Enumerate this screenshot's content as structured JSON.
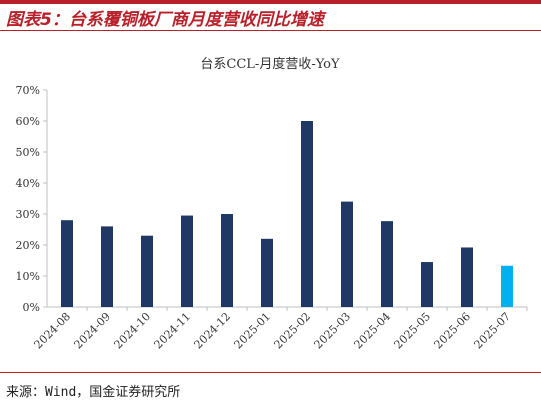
{
  "figure_title": "图表5：台系覆铜板厂商月度营收同比增速",
  "source_note": "来源：Wind，国金证券研究所",
  "colors": {
    "brand": "#b8202a",
    "bar": "#1f3864",
    "bar_highlight": "#00b0f0",
    "axis": "#bfbfbf"
  },
  "chart_data": {
    "type": "bar",
    "title": "台系CCL-月度营收-YoY",
    "xlabel": "",
    "ylabel": "",
    "categories": [
      "2024-08",
      "2024-09",
      "2024-10",
      "2024-11",
      "2024-12",
      "2025-01",
      "2025-02",
      "2025-03",
      "2025-04",
      "2025-05",
      "2025-06",
      "2025-07"
    ],
    "values": [
      28,
      26,
      23,
      29.5,
      30,
      22,
      60,
      34,
      27.7,
      14.5,
      19.2,
      13.3
    ],
    "highlight_index": 11,
    "ylim": [
      0,
      70
    ],
    "yticks": [
      0,
      10,
      20,
      30,
      40,
      50,
      60,
      70
    ],
    "ytick_labels": [
      "0%",
      "10%",
      "20%",
      "30%",
      "40%",
      "50%",
      "60%",
      "70%"
    ],
    "grid": false,
    "legend": "none"
  }
}
